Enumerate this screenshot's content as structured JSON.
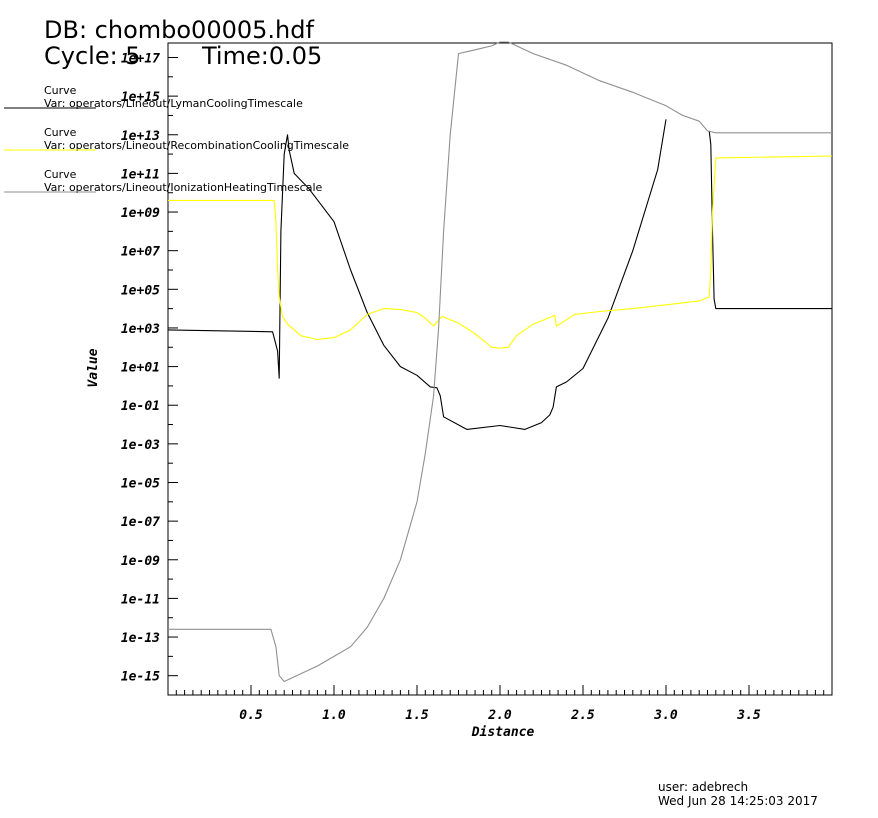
{
  "header": {
    "db": "DB: chombo00005.hdf",
    "cycle": "Cycle: 5",
    "time": "Time:0.05"
  },
  "legend": [
    {
      "line1": "Curve",
      "line2": "Var: operators/Lineout/LymanCoolingTimescale",
      "color": "#000000"
    },
    {
      "line1": "Curve",
      "line2": "Var: operators/Lineout/RecombinationCoolingTimescale",
      "color": "#ffff00"
    },
    {
      "line1": "Curve",
      "line2": "Var: operators/Lineout/IonizationHeatingTimescale",
      "color": "#909090"
    }
  ],
  "footer": {
    "user": "user: adebrech",
    "date": "Wed Jun 28 14:25:03 2017"
  },
  "chart_data": {
    "type": "line",
    "xlabel": "Distance",
    "ylabel": "Value",
    "xlim": [
      0.0,
      4.0
    ],
    "ylog_exp_range": [
      -16,
      17.75
    ],
    "y_scale": "log",
    "x_ticks": [
      "0.5",
      "1.0",
      "1.5",
      "2.0",
      "2.5",
      "3.0",
      "3.5"
    ],
    "x_tick_values": [
      0.5,
      1.0,
      1.5,
      2.0,
      2.5,
      3.0,
      3.5
    ],
    "y_ticks": [
      "1e-15",
      "1e-13",
      "1e-11",
      "1e-09",
      "1e-07",
      "1e-05",
      "1e-03",
      "1e-01",
      "1e+01",
      "1e+03",
      "1e+05",
      "1e+07",
      "1e+09",
      "1e+11",
      "1e+13",
      "1e+15",
      "1e+17"
    ],
    "y_tick_exponents": [
      -15,
      -13,
      -11,
      -9,
      -7,
      -5,
      -3,
      -1,
      1,
      3,
      5,
      7,
      9,
      11,
      13,
      15,
      17
    ],
    "series_note": "series values are log10(Value)",
    "series": [
      {
        "color": "#000000",
        "x": [
          0.0,
          0.63,
          0.66,
          0.67,
          0.68,
          0.7,
          0.72,
          0.73,
          0.76,
          0.85,
          1.0,
          1.1,
          1.2,
          1.3,
          1.4,
          1.5,
          1.58,
          1.62,
          1.64,
          1.66,
          1.8,
          2.0,
          2.15,
          2.25,
          2.3,
          2.32,
          2.34,
          2.4,
          2.5,
          2.65,
          2.8,
          2.95,
          3.0
        ],
        "values": [
          2.9,
          2.8,
          1.8,
          0.4,
          8.0,
          12.0,
          13.0,
          12.2,
          11.0,
          10.2,
          8.5,
          6.0,
          3.8,
          2.1,
          1.0,
          0.55,
          -0.05,
          -0.1,
          -0.5,
          -1.6,
          -2.25,
          -2.05,
          -2.25,
          -1.9,
          -1.5,
          -1.1,
          -0.05,
          0.2,
          0.9,
          3.5,
          7.0,
          11.2,
          13.8
        ]
      },
      {
        "color": "#000000",
        "x": [
          3.26,
          3.27,
          3.28,
          3.29,
          3.3,
          4.0
        ],
        "values": [
          13.2,
          12.5,
          8.0,
          4.5,
          4.0,
          4.0
        ]
      },
      {
        "color": "#ffff00",
        "x": [
          0.0,
          0.64,
          0.65,
          0.66,
          0.67,
          0.69,
          0.72,
          0.8,
          0.9,
          1.0,
          1.1,
          1.2,
          1.3,
          1.4,
          1.5,
          1.55,
          1.6,
          1.65,
          1.75,
          1.85,
          1.95,
          2.0,
          2.05,
          2.1,
          2.2,
          2.33,
          2.34,
          2.36,
          2.45,
          2.6,
          2.8,
          3.0,
          3.2,
          3.26,
          3.27,
          3.28,
          3.3,
          4.0
        ],
        "values": [
          9.6,
          9.6,
          8.5,
          6.0,
          4.6,
          3.6,
          3.2,
          2.6,
          2.4,
          2.5,
          2.9,
          3.7,
          4.0,
          3.95,
          3.8,
          3.5,
          3.1,
          3.6,
          3.25,
          2.7,
          2.0,
          1.95,
          2.0,
          2.6,
          3.2,
          3.65,
          3.1,
          3.2,
          3.7,
          3.85,
          4.0,
          4.2,
          4.4,
          4.6,
          6.0,
          9.0,
          11.8,
          11.9
        ]
      },
      {
        "color": "#909090",
        "x": [
          0.0,
          0.62,
          0.65,
          0.67,
          0.7,
          0.8,
          0.9,
          1.0,
          1.1,
          1.2,
          1.3,
          1.4,
          1.45,
          1.5,
          1.55,
          1.6,
          1.63,
          1.66,
          1.7,
          1.75,
          1.8,
          1.85,
          1.9,
          1.95,
          2.0,
          2.05,
          2.1,
          2.2,
          2.4,
          2.6,
          2.8,
          3.0,
          3.1,
          3.2,
          3.25,
          3.3,
          4.0
        ],
        "values": [
          -12.6,
          -12.6,
          -13.5,
          -15.0,
          -15.3,
          -14.9,
          -14.5,
          -14.0,
          -13.5,
          -12.5,
          -11.0,
          -9.0,
          -7.5,
          -6.0,
          -3.5,
          -0.5,
          3.0,
          8.0,
          13.0,
          17.2,
          17.3,
          17.4,
          17.5,
          17.6,
          17.8,
          17.8,
          17.6,
          17.2,
          16.6,
          15.8,
          15.2,
          14.5,
          14.0,
          13.7,
          13.2,
          13.1,
          13.1
        ]
      }
    ]
  }
}
